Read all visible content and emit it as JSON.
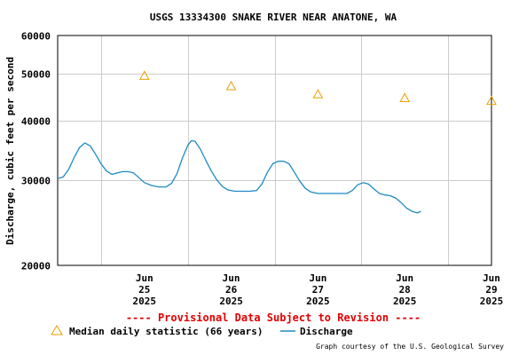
{
  "chart_data": {
    "type": "line",
    "title": "USGS 13334300 SNAKE RIVER NEAR ANATONE, WA",
    "ylabel": "Discharge, cubic feet per second",
    "xlabel": "",
    "y_scale": "log",
    "ylim": [
      20000,
      60000
    ],
    "y_ticks": [
      {
        "value": 20000,
        "label": "20000"
      },
      {
        "value": 30000,
        "label": "30000"
      },
      {
        "value": 40000,
        "label": "40000"
      },
      {
        "value": 50000,
        "label": "50000"
      },
      {
        "value": 60000,
        "label": "60000"
      }
    ],
    "x_range_days": [
      "2025-06-24 12:00",
      "2025-06-29 12:00"
    ],
    "x_ticks": [
      {
        "day": "2025-06-25",
        "line1": "Jun",
        "line2": "25",
        "line3": "2025"
      },
      {
        "day": "2025-06-26",
        "line1": "Jun",
        "line2": "26",
        "line3": "2025"
      },
      {
        "day": "2025-06-27",
        "line1": "Jun",
        "line2": "27",
        "line3": "2025"
      },
      {
        "day": "2025-06-28",
        "line1": "Jun",
        "line2": "28",
        "line3": "2025"
      },
      {
        "day": "2025-06-29",
        "line1": "Jun",
        "line2": "29",
        "line3": "2025"
      }
    ],
    "grid": true,
    "series": [
      {
        "name": "Discharge",
        "color": "#1e8bc3",
        "points": [
          [
            "2025-06-24 12:00",
            30300
          ],
          [
            "2025-06-24 13:30",
            30500
          ],
          [
            "2025-06-24 15:00",
            31600
          ],
          [
            "2025-06-24 16:30",
            33400
          ],
          [
            "2025-06-24 18:00",
            35100
          ],
          [
            "2025-06-24 19:30",
            35900
          ],
          [
            "2025-06-24 21:00",
            35400
          ],
          [
            "2025-06-24 22:30",
            34000
          ],
          [
            "2025-06-25 00:00",
            32500
          ],
          [
            "2025-06-25 01:30",
            31400
          ],
          [
            "2025-06-25 03:00",
            30900
          ],
          [
            "2025-06-25 04:30",
            31100
          ],
          [
            "2025-06-25 06:00",
            31300
          ],
          [
            "2025-06-25 07:30",
            31300
          ],
          [
            "2025-06-25 09:00",
            31100
          ],
          [
            "2025-06-25 10:30",
            30400
          ],
          [
            "2025-06-25 12:00",
            29700
          ],
          [
            "2025-06-25 14:00",
            29300
          ],
          [
            "2025-06-25 16:00",
            29100
          ],
          [
            "2025-06-25 18:00",
            29100
          ],
          [
            "2025-06-25 19:30",
            29600
          ],
          [
            "2025-06-25 21:00",
            31000
          ],
          [
            "2025-06-25 22:30",
            33400
          ],
          [
            "2025-06-26 00:00",
            35500
          ],
          [
            "2025-06-26 01:00",
            36300
          ],
          [
            "2025-06-26 02:00",
            36200
          ],
          [
            "2025-06-26 03:30",
            34800
          ],
          [
            "2025-06-26 05:00",
            33000
          ],
          [
            "2025-06-26 06:30",
            31400
          ],
          [
            "2025-06-26 08:00",
            30100
          ],
          [
            "2025-06-26 09:30",
            29200
          ],
          [
            "2025-06-26 11:00",
            28700
          ],
          [
            "2025-06-26 13:00",
            28500
          ],
          [
            "2025-06-26 15:00",
            28500
          ],
          [
            "2025-06-26 17:00",
            28500
          ],
          [
            "2025-06-26 19:00",
            28600
          ],
          [
            "2025-06-26 20:30",
            29500
          ],
          [
            "2025-06-26 22:00",
            31200
          ],
          [
            "2025-06-26 23:30",
            32500
          ],
          [
            "2025-06-27 01:00",
            32900
          ],
          [
            "2025-06-27 02:30",
            32900
          ],
          [
            "2025-06-27 04:00",
            32500
          ],
          [
            "2025-06-27 05:30",
            31200
          ],
          [
            "2025-06-27 07:00",
            29900
          ],
          [
            "2025-06-27 08:30",
            28900
          ],
          [
            "2025-06-27 10:00",
            28400
          ],
          [
            "2025-06-27 12:00",
            28200
          ],
          [
            "2025-06-27 14:00",
            28200
          ],
          [
            "2025-06-27 16:00",
            28200
          ],
          [
            "2025-06-27 18:00",
            28200
          ],
          [
            "2025-06-27 20:00",
            28200
          ],
          [
            "2025-06-27 21:30",
            28600
          ],
          [
            "2025-06-27 23:00",
            29400
          ],
          [
            "2025-06-28 00:30",
            29700
          ],
          [
            "2025-06-28 02:00",
            29500
          ],
          [
            "2025-06-28 03:30",
            28800
          ],
          [
            "2025-06-28 05:00",
            28200
          ],
          [
            "2025-06-28 06:30",
            28000
          ],
          [
            "2025-06-28 08:00",
            27900
          ],
          [
            "2025-06-28 09:30",
            27600
          ],
          [
            "2025-06-28 11:00",
            27000
          ],
          [
            "2025-06-28 12:30",
            26300
          ],
          [
            "2025-06-28 14:00",
            25900
          ],
          [
            "2025-06-28 15:30",
            25700
          ],
          [
            "2025-06-28 16:30",
            25900
          ]
        ]
      },
      {
        "name": "Median daily statistic (66 years)",
        "color": "#e8a000",
        "marker": "triangle-open",
        "points": [
          [
            "2025-06-25",
            49500
          ],
          [
            "2025-06-26",
            47100
          ],
          [
            "2025-06-27",
            45300
          ],
          [
            "2025-06-28",
            44500
          ],
          [
            "2025-06-29",
            43900
          ]
        ]
      }
    ],
    "provisional_note": "---- Provisional Data Subject to Revision ----",
    "credit": "Graph courtesy of the U.S. Geological Survey",
    "legend_position": "bottom-left"
  }
}
